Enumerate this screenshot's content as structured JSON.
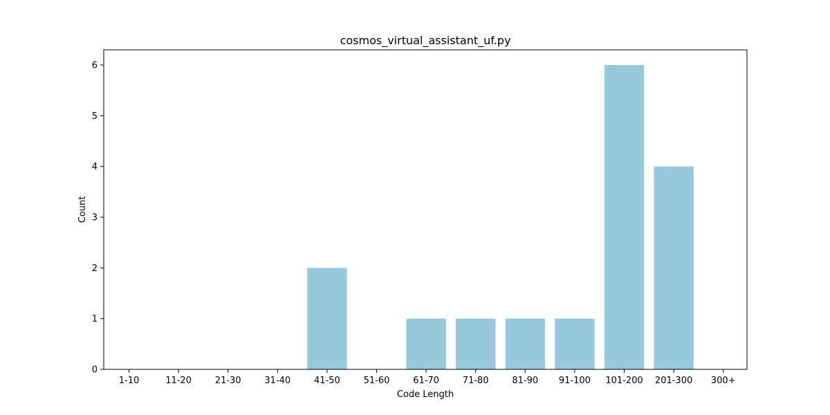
{
  "chart_data": {
    "type": "bar",
    "title": "cosmos_virtual_assistant_uf.py",
    "xlabel": "Code Length",
    "ylabel": "Count",
    "categories": [
      "1-10",
      "11-20",
      "21-30",
      "31-40",
      "41-50",
      "51-60",
      "61-70",
      "71-80",
      "81-90",
      "91-100",
      "101-200",
      "201-300",
      "300+"
    ],
    "values": [
      0,
      0,
      0,
      0,
      2,
      0,
      1,
      1,
      1,
      1,
      6,
      4,
      0
    ],
    "ylim": [
      0,
      6.3
    ],
    "yticks": [
      0,
      1,
      2,
      3,
      4,
      5,
      6
    ],
    "grid": false,
    "bar_color": "#96c9dc"
  }
}
